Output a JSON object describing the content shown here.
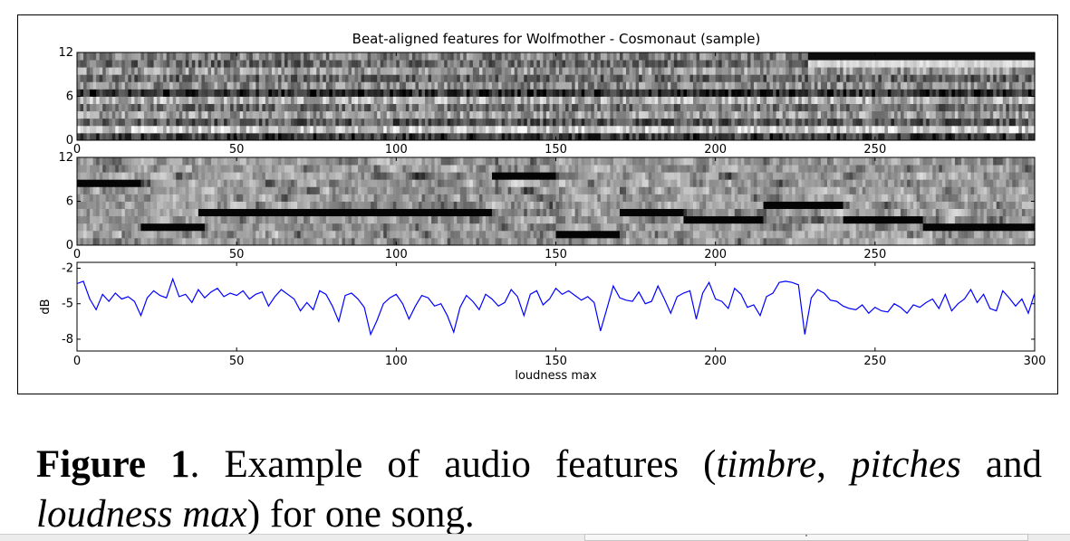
{
  "figure": {
    "title": "Beat-aligned features for Wolfmother - Cosmonaut (sample)",
    "caption": {
      "label": "Figure 1",
      "text_1": ".  Example of audio features (",
      "term_1": "timbre",
      "text_2": ", ",
      "term_2": "pitches",
      "text_3": " and ",
      "term_3": "loudness max",
      "text_4": ") for one song."
    }
  },
  "chart_data": [
    {
      "type": "heatmap",
      "title": "Beat-aligned features for Wolfmother - Cosmonaut (sample)",
      "feature": "timbre",
      "colormap": "grayscale",
      "xlim": [
        0,
        300
      ],
      "ylim": [
        0,
        12
      ],
      "xticks": [
        0,
        50,
        100,
        150,
        200,
        250
      ],
      "yticks": [
        0,
        6,
        12
      ],
      "n_beats": 300,
      "n_rows": 12,
      "row_mean_intensity": [
        0.22,
        0.78,
        0.35,
        0.62,
        0.45,
        0.7,
        0.18,
        0.55,
        0.4,
        0.6,
        0.42,
        0.5
      ]
    },
    {
      "type": "heatmap",
      "feature": "pitches",
      "colormap": "grayscale",
      "xlim": [
        0,
        300
      ],
      "ylim": [
        0,
        12
      ],
      "xticks": [
        0,
        50,
        100,
        150,
        200,
        250
      ],
      "yticks": [
        0,
        6,
        12
      ],
      "n_beats": 300,
      "n_rows": 12,
      "dominant_pitch_row_segments": [
        {
          "x": [
            0,
            20
          ],
          "row": 8
        },
        {
          "x": [
            20,
            40
          ],
          "row": 2
        },
        {
          "x": [
            38,
            130
          ],
          "row": 4
        },
        {
          "x": [
            130,
            150
          ],
          "row": 9
        },
        {
          "x": [
            150,
            170
          ],
          "row": 1
        },
        {
          "x": [
            170,
            190
          ],
          "row": 4
        },
        {
          "x": [
            190,
            215
          ],
          "row": 3
        },
        {
          "x": [
            215,
            240
          ],
          "row": 5
        },
        {
          "x": [
            240,
            265
          ],
          "row": 3
        },
        {
          "x": [
            265,
            300
          ],
          "row": 2
        }
      ]
    },
    {
      "type": "line",
      "feature": "loudness max",
      "xlabel": "loudness max",
      "ylabel": "dB",
      "xlim": [
        0,
        300
      ],
      "ylim": [
        -9,
        -1.5
      ],
      "xticks": [
        0,
        50,
        100,
        150,
        200,
        250,
        300
      ],
      "yticks": [
        -2,
        -5,
        -8
      ],
      "series": [
        {
          "color": "#0000ff",
          "x": [
            0,
            2,
            4,
            6,
            8,
            10,
            12,
            14,
            16,
            18,
            20,
            22,
            24,
            26,
            28,
            30,
            32,
            34,
            36,
            38,
            40,
            42,
            44,
            46,
            48,
            50,
            52,
            54,
            56,
            58,
            60,
            62,
            64,
            66,
            68,
            70,
            72,
            74,
            76,
            78,
            80,
            82,
            84,
            86,
            88,
            90,
            92,
            94,
            96,
            98,
            100,
            102,
            104,
            106,
            108,
            110,
            112,
            114,
            116,
            118,
            120,
            122,
            124,
            126,
            128,
            130,
            132,
            134,
            136,
            138,
            140,
            142,
            144,
            146,
            148,
            150,
            152,
            154,
            156,
            158,
            160,
            162,
            164,
            166,
            168,
            170,
            172,
            174,
            176,
            178,
            180,
            182,
            184,
            186,
            188,
            190,
            192,
            194,
            196,
            198,
            200,
            202,
            204,
            206,
            208,
            210,
            212,
            214,
            216,
            218,
            220,
            222,
            224,
            226,
            228,
            230,
            232,
            234,
            236,
            238,
            240,
            242,
            244,
            246,
            248,
            250,
            252,
            254,
            256,
            258,
            260,
            262,
            264,
            266,
            268,
            270,
            272,
            274,
            276,
            278,
            280,
            282,
            284,
            286,
            288,
            290,
            292,
            294,
            296,
            298,
            300
          ],
          "y": [
            -3.3,
            -3.1,
            -4.6,
            -5.5,
            -4.2,
            -4.8,
            -4.1,
            -4.6,
            -4.4,
            -4.8,
            -6.0,
            -4.5,
            -3.9,
            -4.3,
            -4.5,
            -2.9,
            -4.4,
            -4.2,
            -4.9,
            -3.8,
            -4.5,
            -4.0,
            -3.7,
            -4.4,
            -4.1,
            -4.3,
            -3.9,
            -4.6,
            -4.2,
            -4.0,
            -5.2,
            -4.4,
            -3.8,
            -4.2,
            -4.6,
            -5.6,
            -4.9,
            -5.5,
            -3.9,
            -4.2,
            -5.2,
            -6.5,
            -4.3,
            -4.1,
            -4.6,
            -5.3,
            -7.6,
            -6.4,
            -5.0,
            -4.5,
            -4.2,
            -5.0,
            -6.3,
            -5.2,
            -4.3,
            -4.5,
            -5.2,
            -5.0,
            -6.0,
            -7.4,
            -5.3,
            -4.3,
            -4.8,
            -5.5,
            -4.2,
            -4.6,
            -5.2,
            -4.9,
            -3.8,
            -4.4,
            -6.0,
            -4.2,
            -3.9,
            -5.1,
            -4.6,
            -3.7,
            -4.2,
            -3.9,
            -4.3,
            -4.7,
            -4.4,
            -4.9,
            -7.3,
            -5.4,
            -3.5,
            -4.5,
            -4.7,
            -4.8,
            -4.0,
            -5.0,
            -4.8,
            -3.5,
            -4.6,
            -5.8,
            -4.4,
            -4.1,
            -3.9,
            -6.3,
            -4.1,
            -3.2,
            -4.6,
            -4.8,
            -5.4,
            -3.7,
            -4.2,
            -5.3,
            -5.1,
            -6.0,
            -4.4,
            -4.1,
            -3.2,
            -3.1,
            -3.2,
            -3.4,
            -7.6,
            -4.5,
            -3.8,
            -4.1,
            -4.7,
            -4.8,
            -5.2,
            -5.4,
            -5.5,
            -5.1,
            -5.8,
            -5.3,
            -5.6,
            -5.7,
            -5.0,
            -5.3,
            -5.8,
            -5.1,
            -5.3,
            -4.9,
            -4.6,
            -5.4,
            -4.2,
            -5.6,
            -5.0,
            -4.6,
            -3.8,
            -4.9,
            -4.2,
            -5.4,
            -5.6,
            -3.9,
            -4.5,
            -5.2,
            -4.6,
            -5.8,
            -4.1
          ]
        }
      ]
    }
  ],
  "bottom_bar": {
    "field_text": "\""
  }
}
